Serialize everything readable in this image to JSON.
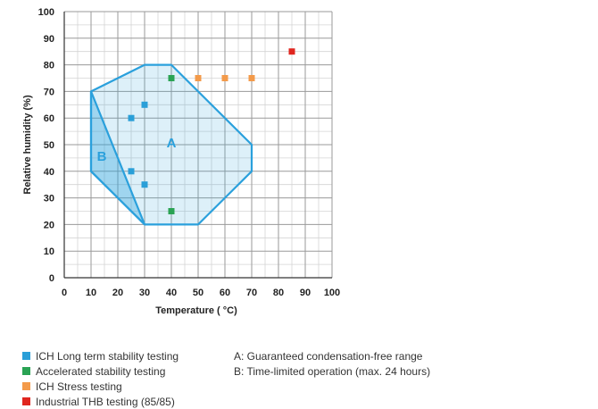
{
  "chart_data": {
    "type": "scatter",
    "xlabel": "Temperature ( °C)",
    "ylabel": "Relative humidity (%)",
    "xlim": [
      0,
      100
    ],
    "ylim": [
      0,
      100
    ],
    "xticks": [
      0,
      10,
      20,
      30,
      40,
      50,
      60,
      70,
      80,
      90,
      100
    ],
    "yticks": [
      0,
      10,
      20,
      30,
      40,
      50,
      60,
      70,
      80,
      90,
      100
    ],
    "grid": true,
    "legend_position": "bottom-left",
    "series": [
      {
        "name": "ICH Long term stability testing",
        "color": "#2a9fd8",
        "points": [
          [
            25,
            60
          ],
          [
            30,
            65
          ],
          [
            25,
            40
          ],
          [
            30,
            35
          ]
        ]
      },
      {
        "name": "Accelerated stability testing",
        "color": "#2aa354",
        "points": [
          [
            40,
            75
          ],
          [
            40,
            25
          ]
        ]
      },
      {
        "name": "ICH Stress testing",
        "color": "#f39a4a",
        "points": [
          [
            50,
            75
          ],
          [
            60,
            75
          ],
          [
            70,
            75
          ]
        ]
      },
      {
        "name": "Industrial THB testing (85/85)",
        "color": "#e0261f",
        "points": [
          [
            85,
            85
          ]
        ]
      }
    ],
    "regions": [
      {
        "label": "A",
        "color": "#2aa0dc",
        "polygon": [
          [
            10,
            70
          ],
          [
            30,
            80
          ],
          [
            40,
            80
          ],
          [
            70,
            50
          ],
          [
            70,
            40
          ],
          [
            50,
            20
          ],
          [
            30,
            20
          ],
          [
            10,
            40
          ]
        ],
        "label_at": [
          40,
          49
        ]
      },
      {
        "label": "B",
        "color": "#2aa0dc",
        "polygon": [
          [
            10,
            70
          ],
          [
            30,
            20
          ],
          [
            10,
            40
          ]
        ],
        "label_at": [
          14,
          44
        ]
      }
    ],
    "region_legend": [
      "A: Guaranteed condensation-free range",
      "B: Time-limited operation (max. 24 hours)"
    ]
  }
}
